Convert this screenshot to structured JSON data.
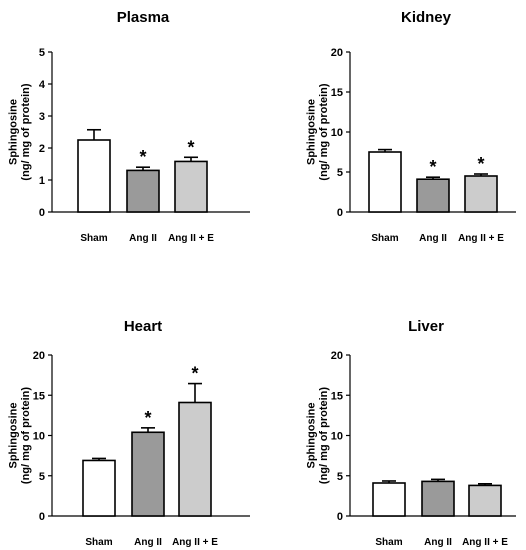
{
  "chart_data": [
    {
      "type": "bar",
      "title": "Plasma",
      "ylabel_lines": [
        "Sphingosine",
        "(ng/ mg of protein)"
      ],
      "ylim": [
        0,
        5
      ],
      "yticks": [
        0,
        1,
        2,
        3,
        4,
        5
      ],
      "categories": [
        "Sham",
        "Ang II",
        "Ang II + E"
      ],
      "values": [
        2.25,
        1.3,
        1.58
      ],
      "errors": [
        0.32,
        0.1,
        0.13
      ],
      "significance": [
        "",
        "*",
        "*"
      ],
      "bar_colors": [
        "#ffffff",
        "#9a9a9a",
        "#cccccc"
      ]
    },
    {
      "type": "bar",
      "title": "Kidney",
      "ylabel_lines": [
        "Sphingosine",
        "(ng/ mg of protein)"
      ],
      "ylim": [
        0,
        20
      ],
      "yticks": [
        0,
        5,
        10,
        15,
        20
      ],
      "categories": [
        "Sham",
        "Ang II",
        "Ang II + E"
      ],
      "values": [
        7.5,
        4.1,
        4.5
      ],
      "errors": [
        0.3,
        0.25,
        0.25
      ],
      "significance": [
        "",
        "*",
        "*"
      ],
      "bar_colors": [
        "#ffffff",
        "#9a9a9a",
        "#cccccc"
      ]
    },
    {
      "type": "bar",
      "title": "Heart",
      "ylabel_lines": [
        "Sphingosine",
        "(ng/ mg of protein)"
      ],
      "ylim": [
        0,
        20
      ],
      "yticks": [
        0,
        5,
        10,
        15,
        20
      ],
      "categories": [
        "Sham",
        "Ang II",
        "Ang II + E"
      ],
      "values": [
        6.9,
        10.4,
        14.1
      ],
      "errors": [
        0.25,
        0.55,
        2.35
      ],
      "significance": [
        "",
        "*",
        "*"
      ],
      "bar_colors": [
        "#ffffff",
        "#9a9a9a",
        "#cccccc"
      ]
    },
    {
      "type": "bar",
      "title": "Liver",
      "ylabel_lines": [
        "Sphingosine",
        "(ng/ mg of protein)"
      ],
      "ylim": [
        0,
        20
      ],
      "yticks": [
        0,
        5,
        10,
        15,
        20
      ],
      "categories": [
        "Sham",
        "Ang II",
        "Ang II + E"
      ],
      "values": [
        4.1,
        4.3,
        3.8
      ],
      "errors": [
        0.25,
        0.25,
        0.2
      ],
      "significance": [
        "",
        "",
        ""
      ],
      "bar_colors": [
        "#ffffff",
        "#9a9a9a",
        "#cccccc"
      ]
    }
  ]
}
